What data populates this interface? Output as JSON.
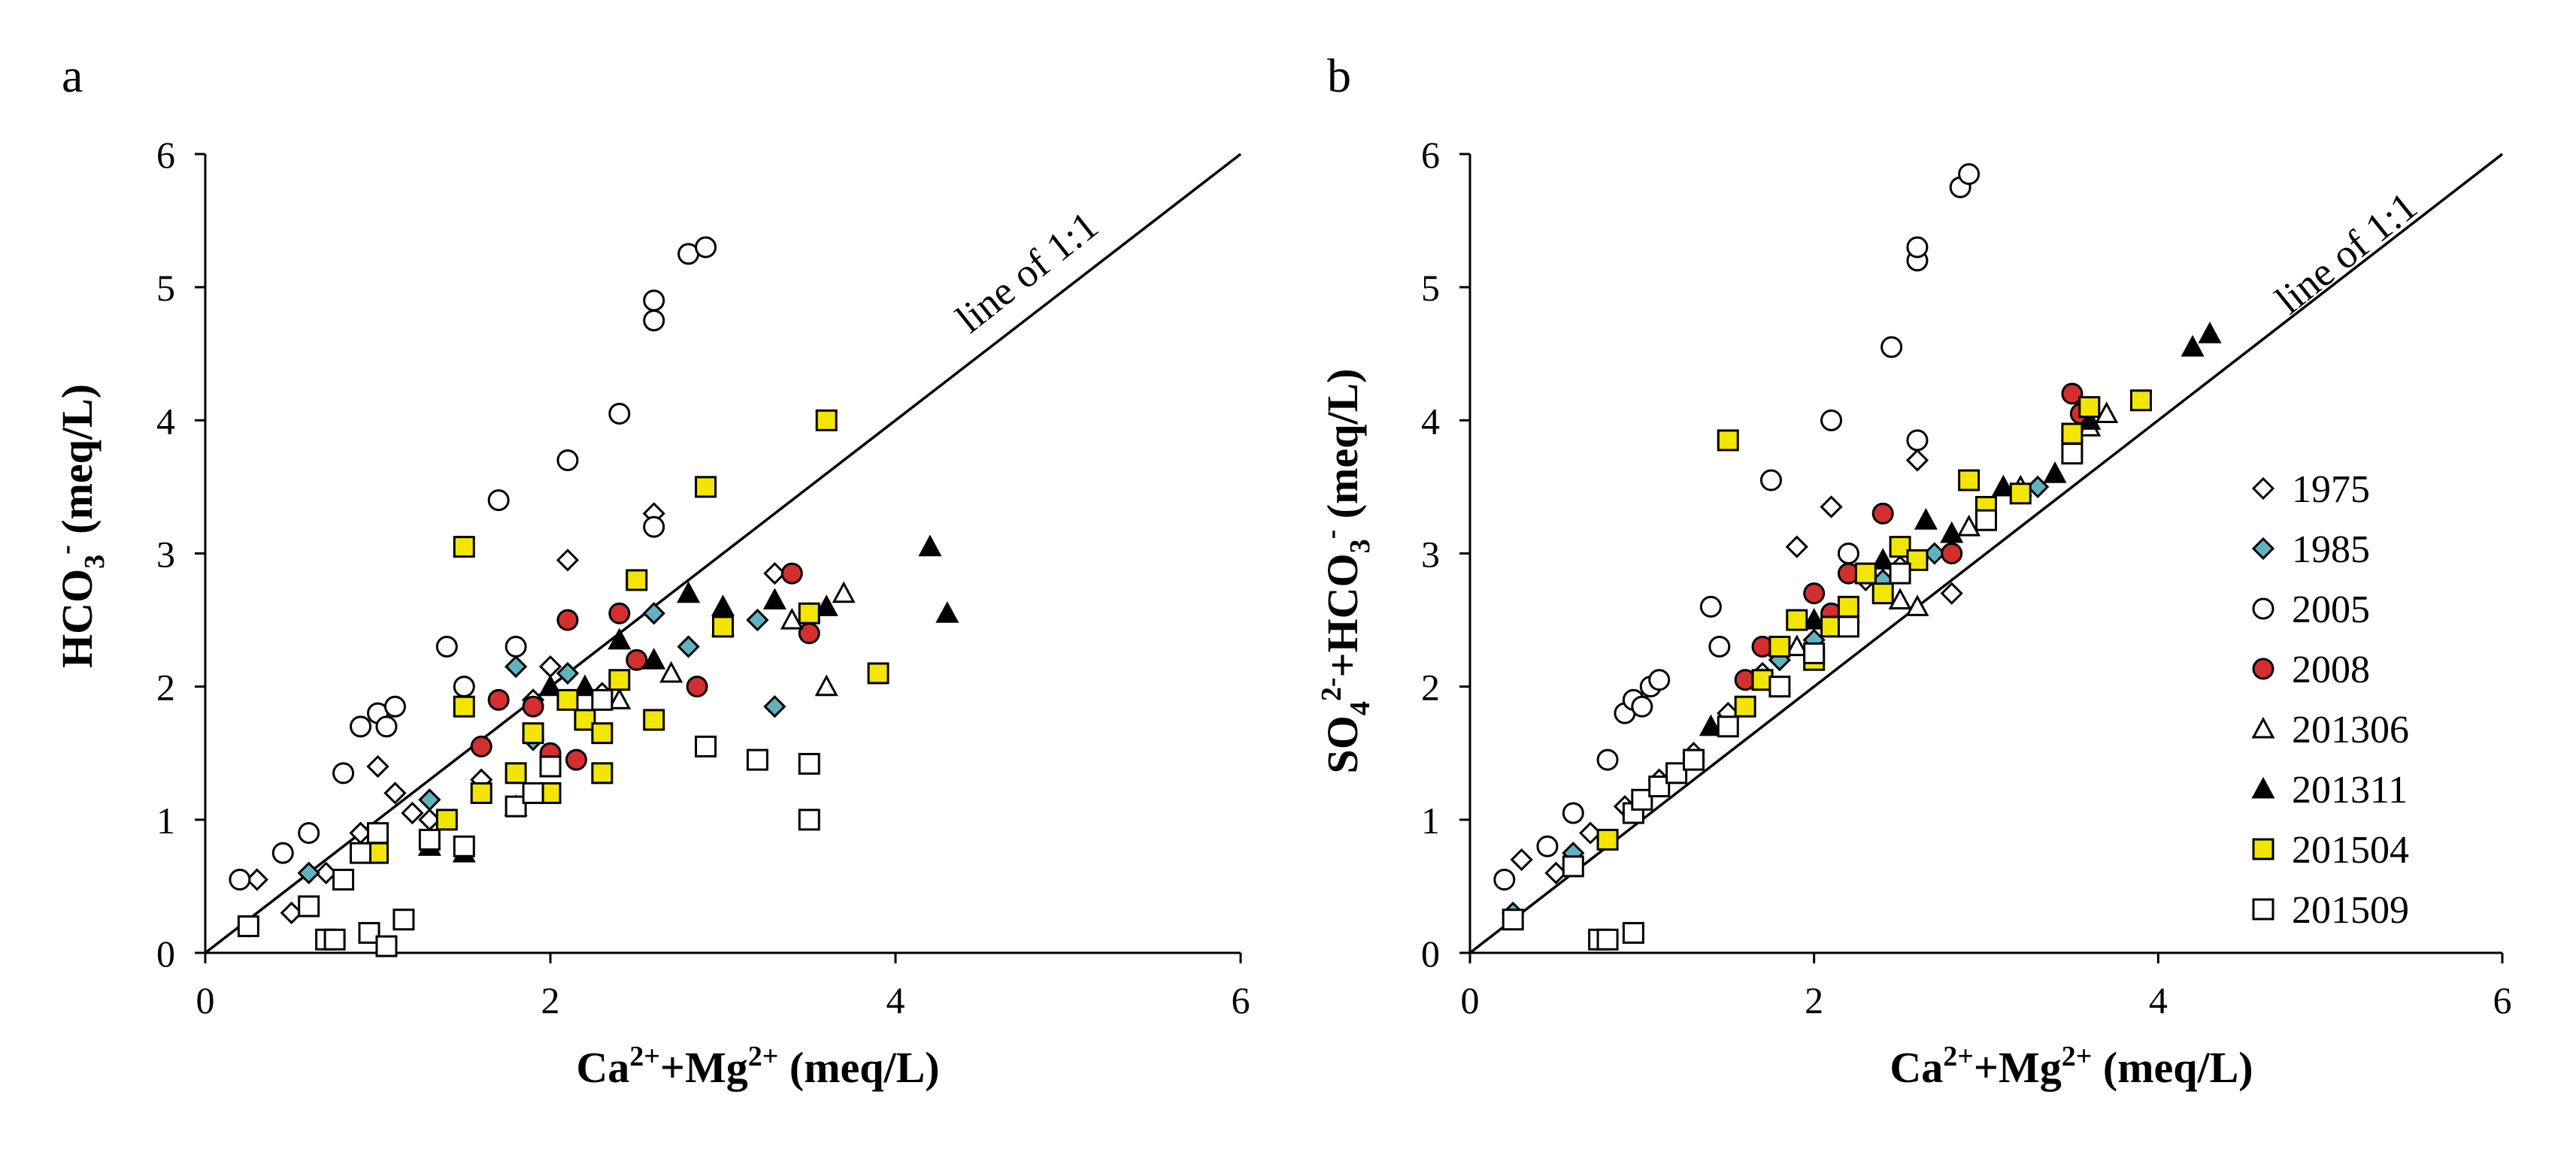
{
  "figure": {
    "background": "#ffffff",
    "colors": {
      "black": "#000000",
      "teal": "#5fb3bf",
      "red": "#d32f2f",
      "yellow": "#f2e600",
      "white": "#ffffff"
    }
  },
  "chart_data": [
    {
      "type": "scatter",
      "panel_label": "a",
      "title": "",
      "xlabel": "Ca²⁺+Mg²⁺ (meq/L)",
      "ylabel": "HCO₃⁻ (meq/L)",
      "xlim": [
        0,
        6
      ],
      "ylim": [
        0,
        6
      ],
      "xticks": [
        "0",
        "2",
        "4",
        "6"
      ],
      "yticks": [
        "0",
        "1",
        "2",
        "3",
        "4",
        "5",
        "6"
      ],
      "ref_line": {
        "label": "line of 1:1",
        "from": [
          0,
          0
        ],
        "to": [
          6,
          6
        ]
      },
      "series": [
        {
          "name": "1975",
          "marker": "diamond",
          "fill": "#ffffff",
          "x": [
            0.3,
            0.5,
            0.7,
            0.9,
            1.0,
            1.1,
            1.2,
            1.3,
            1.6,
            1.9,
            2.0,
            2.1,
            2.3,
            2.6,
            3.3
          ],
          "y": [
            0.55,
            0.3,
            0.6,
            0.9,
            1.4,
            1.2,
            1.05,
            1.0,
            1.3,
            1.9,
            2.15,
            2.95,
            1.95,
            3.3,
            2.85
          ]
        },
        {
          "name": "1985",
          "marker": "diamond",
          "fill": "#5fb3bf",
          "x": [
            0.25,
            0.6,
            1.3,
            1.8,
            1.9,
            2.1,
            2.6,
            2.8,
            3.2,
            3.3,
            3.5
          ],
          "y": [
            0.2,
            0.6,
            1.15,
            2.15,
            1.6,
            2.1,
            2.55,
            2.3,
            2.5,
            1.85,
            2.55
          ]
        },
        {
          "name": "2005",
          "marker": "circle",
          "fill": "#ffffff",
          "x": [
            0.2,
            0.45,
            0.6,
            0.8,
            0.9,
            1.0,
            1.05,
            1.1,
            1.4,
            1.5,
            1.7,
            1.8,
            2.1,
            2.4,
            2.6,
            2.6,
            2.8,
            2.9,
            2.6
          ],
          "y": [
            0.55,
            0.75,
            0.9,
            1.35,
            1.7,
            1.8,
            1.7,
            1.85,
            2.3,
            2.0,
            3.4,
            2.3,
            3.7,
            4.05,
            4.75,
            4.9,
            5.25,
            5.3,
            3.2
          ]
        },
        {
          "name": "2008",
          "marker": "circle",
          "fill": "#d32f2f",
          "x": [
            1.6,
            1.7,
            1.9,
            2.0,
            2.1,
            2.15,
            2.4,
            2.5,
            2.85,
            3.4,
            3.5
          ],
          "y": [
            1.55,
            1.9,
            1.85,
            1.5,
            2.5,
            1.45,
            2.55,
            2.2,
            2.0,
            2.85,
            2.4
          ]
        },
        {
          "name": "201306",
          "marker": "triangle",
          "fill": "#ffffff",
          "x": [
            2.4,
            2.7,
            3.0,
            3.4,
            3.6,
            3.7
          ],
          "y": [
            1.9,
            2.1,
            2.45,
            2.5,
            2.0,
            2.7
          ]
        },
        {
          "name": "201311",
          "marker": "triangle",
          "fill": "#000000",
          "x": [
            1.3,
            1.5,
            1.8,
            2.0,
            2.2,
            2.4,
            2.6,
            2.8,
            3.0,
            3.3,
            3.6,
            4.2,
            4.3
          ],
          "y": [
            0.8,
            0.75,
            1.1,
            2.0,
            2.0,
            2.35,
            2.2,
            2.7,
            2.6,
            2.65,
            2.6,
            3.05,
            2.55
          ]
        },
        {
          "name": "201504",
          "marker": "square",
          "fill": "#f2e600",
          "x": [
            1.0,
            1.4,
            1.5,
            1.6,
            1.8,
            1.9,
            2.0,
            2.1,
            2.2,
            2.3,
            2.4,
            2.5,
            2.6,
            2.9,
            3.0,
            3.5,
            3.6,
            3.9,
            1.5,
            2.3
          ],
          "y": [
            0.75,
            1.0,
            3.05,
            1.2,
            1.35,
            1.65,
            1.2,
            1.9,
            1.75,
            1.35,
            2.05,
            2.8,
            1.75,
            3.5,
            2.45,
            2.55,
            4.0,
            2.1,
            1.85,
            1.65
          ]
        },
        {
          "name": "201509",
          "marker": "square",
          "fill": "#ffffff",
          "x": [
            0.25,
            0.6,
            0.7,
            0.75,
            0.8,
            0.9,
            0.95,
            1.0,
            1.05,
            1.15,
            1.3,
            1.5,
            1.8,
            1.9,
            2.0,
            2.3,
            2.9,
            3.2,
            3.5,
            3.5
          ],
          "y": [
            0.2,
            0.35,
            0.1,
            0.1,
            0.55,
            0.75,
            0.15,
            0.9,
            0.05,
            0.25,
            0.85,
            0.8,
            1.1,
            1.2,
            1.4,
            1.9,
            1.55,
            1.45,
            1.42,
            1.0
          ]
        }
      ]
    },
    {
      "type": "scatter",
      "panel_label": "b",
      "title": "",
      "xlabel": "Ca²⁺+Mg²⁺ (meq/L)",
      "ylabel": "SO₄²⁻+HCO₃⁻ (meq/L)",
      "xlim": [
        0,
        6
      ],
      "ylim": [
        0,
        6
      ],
      "xticks": [
        "0",
        "2",
        "4",
        "6"
      ],
      "yticks": [
        "0",
        "1",
        "2",
        "3",
        "4",
        "5",
        "6"
      ],
      "ref_line": {
        "label": "line of 1:1",
        "from": [
          0,
          0
        ],
        "to": [
          6,
          6
        ]
      },
      "legend": {
        "position": "right",
        "entries": [
          "1975",
          "1985",
          "2005",
          "2008",
          "201306",
          "201311",
          "201504",
          "201509"
        ]
      },
      "series": [
        {
          "name": "1975",
          "marker": "diamond",
          "fill": "#ffffff",
          "x": [
            0.3,
            0.5,
            0.7,
            0.9,
            1.1,
            1.3,
            1.5,
            1.7,
            1.9,
            2.1,
            2.3,
            2.5,
            2.6,
            2.8
          ],
          "y": [
            0.7,
            0.6,
            0.9,
            1.1,
            1.3,
            1.5,
            1.8,
            2.1,
            3.05,
            3.35,
            2.8,
            2.9,
            3.7,
            2.7
          ]
        },
        {
          "name": "1985",
          "marker": "diamond",
          "fill": "#5fb3bf",
          "x": [
            0.25,
            0.6,
            1.3,
            1.8,
            2.0,
            2.4,
            2.7,
            3.0,
            3.3,
            3.5
          ],
          "y": [
            0.3,
            0.75,
            1.45,
            2.2,
            2.35,
            2.8,
            3.0,
            3.3,
            3.5,
            3.85
          ]
        },
        {
          "name": "2005",
          "marker": "circle",
          "fill": "#ffffff",
          "x": [
            0.2,
            0.45,
            0.6,
            0.8,
            0.9,
            0.95,
            1.0,
            1.05,
            1.1,
            1.4,
            1.45,
            1.75,
            2.1,
            2.45,
            2.6,
            2.6,
            2.6,
            2.85,
            2.9,
            2.2
          ],
          "y": [
            0.55,
            0.8,
            1.05,
            1.45,
            1.8,
            1.9,
            1.85,
            2.0,
            2.05,
            2.6,
            2.3,
            3.55,
            4.0,
            4.55,
            5.2,
            5.3,
            3.85,
            5.75,
            5.85,
            3.0
          ]
        },
        {
          "name": "2008",
          "marker": "circle",
          "fill": "#d32f2f",
          "x": [
            1.6,
            1.7,
            1.9,
            2.0,
            2.1,
            2.2,
            2.4,
            2.8,
            3.5,
            3.55
          ],
          "y": [
            2.05,
            2.3,
            2.5,
            2.7,
            2.55,
            2.85,
            3.3,
            3.0,
            4.2,
            4.05
          ]
        },
        {
          "name": "201306",
          "marker": "triangle",
          "fill": "#ffffff",
          "x": [
            1.9,
            2.2,
            2.5,
            2.6,
            2.9,
            3.2,
            3.6,
            3.7
          ],
          "y": [
            2.3,
            2.55,
            2.65,
            2.6,
            3.2,
            3.5,
            3.95,
            4.05
          ]
        },
        {
          "name": "201311",
          "marker": "triangle",
          "fill": "#000000",
          "x": [
            1.4,
            1.7,
            2.0,
            2.4,
            2.65,
            2.8,
            3.1,
            3.4,
            3.6,
            4.2,
            4.3
          ],
          "y": [
            1.7,
            2.05,
            2.5,
            2.95,
            3.25,
            3.15,
            3.5,
            3.6,
            4.0,
            4.55,
            4.65
          ]
        },
        {
          "name": "201504",
          "marker": "square",
          "fill": "#f2e600",
          "x": [
            0.8,
            1.5,
            1.6,
            1.7,
            1.8,
            1.9,
            2.0,
            2.1,
            2.2,
            2.3,
            2.4,
            2.5,
            2.6,
            2.9,
            3.0,
            3.2,
            3.5,
            3.6,
            3.9
          ],
          "y": [
            0.85,
            3.85,
            1.85,
            2.05,
            2.3,
            2.5,
            2.2,
            2.45,
            2.6,
            2.85,
            2.7,
            3.05,
            2.95,
            3.55,
            3.35,
            3.45,
            3.9,
            4.1,
            4.15
          ]
        },
        {
          "name": "201509",
          "marker": "square",
          "fill": "#ffffff",
          "x": [
            0.25,
            0.6,
            0.75,
            0.8,
            0.95,
            0.95,
            1.0,
            1.1,
            1.2,
            1.3,
            1.5,
            1.8,
            2.0,
            2.2,
            2.5,
            3.0,
            3.5
          ],
          "y": [
            0.25,
            0.65,
            0.1,
            0.1,
            0.15,
            1.05,
            1.15,
            1.25,
            1.35,
            1.45,
            1.7,
            2.0,
            2.25,
            2.45,
            2.85,
            3.25,
            3.75
          ]
        }
      ]
    }
  ]
}
